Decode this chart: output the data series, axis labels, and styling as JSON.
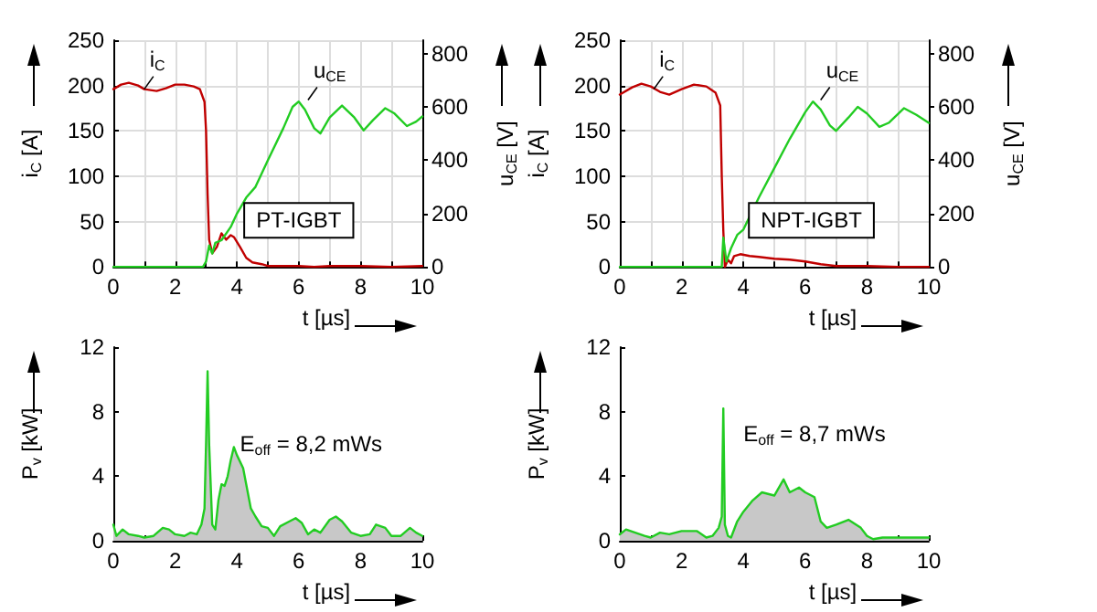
{
  "chart_data": [
    {
      "type": "line",
      "xlabel": "t [µs]",
      "ylabel": "i$_{C}$ [A]",
      "y2label": "u$_{CE}$ [V]",
      "xlim": [
        0,
        10
      ],
      "xticks": [
        0,
        {
          "value": 1,
          "label": null
        },
        2,
        {
          "value": 3,
          "label": null
        },
        4,
        {
          "value": 5,
          "label": null
        },
        6,
        {
          "value": 7,
          "label": null
        },
        8,
        {
          "value": 9,
          "label": null
        },
        10
      ],
      "ylim": [
        0,
        250
      ],
      "yticks": [
        0,
        50,
        100,
        150,
        200,
        250
      ],
      "y2lim": [
        0,
        850
      ],
      "y2ticks": [
        0,
        200,
        400,
        600,
        800
      ],
      "grid": true,
      "marker": "none",
      "annotations": [
        {
          "text": "i$_{C}$",
          "x": 1.0,
          "y": 196
        },
        {
          "text": "u$_{CE}$",
          "x": 6.3,
          "y": 184
        },
        "PT-IGBT"
      ],
      "series": [
        {
          "color": "#c00000",
          "x": [
            0,
            0.25,
            0.5,
            0.8,
            1.0,
            1.4,
            1.7,
            2.0,
            2.3,
            2.6,
            2.8,
            2.95,
            3.0,
            3.05,
            3.1,
            3.2,
            3.35,
            3.5,
            3.65,
            3.8,
            3.9,
            4.1,
            4.3,
            4.5,
            4.8,
            5.0,
            5.5,
            6.0,
            6.5,
            7,
            8,
            9,
            10
          ],
          "values": [
            196,
            201,
            203,
            200,
            196,
            194,
            197,
            201,
            201,
            199,
            196,
            182,
            150,
            80,
            30,
            15,
            22,
            37,
            30,
            35,
            33,
            22,
            10,
            5,
            3,
            1,
            1,
            1,
            0,
            1,
            1,
            0,
            1
          ]
        },
        {
          "color": "#22cc22",
          "axis": "y2",
          "x": [
            0,
            1,
            2,
            2.9,
            3.0,
            3.1,
            3.2,
            3.3,
            3.5,
            3.8,
            4.0,
            4.3,
            4.6,
            5.0,
            5.5,
            5.8,
            6.0,
            6.2,
            6.5,
            6.7,
            7.0,
            7.4,
            7.8,
            8.1,
            8.4,
            8.8,
            9.1,
            9.5,
            9.8,
            10
          ],
          "values": [
            0,
            0,
            0,
            0,
            20,
            80,
            50,
            90,
            100,
            150,
            200,
            260,
            300,
            400,
            520,
            600,
            620,
            590,
            520,
            500,
            560,
            605,
            560,
            512,
            550,
            595,
            575,
            528,
            545,
            564
          ]
        }
      ]
    },
    {
      "type": "line",
      "xlabel": "t [µs]",
      "ylabel": "i$_{C}$ [A]",
      "y2label": "u$_{CE}$ [V]",
      "xlim": [
        0,
        10
      ],
      "xticks": [
        0,
        {
          "value": 1,
          "label": null
        },
        2,
        {
          "value": 3,
          "label": null
        },
        4,
        {
          "value": 5,
          "label": null
        },
        6,
        {
          "value": 7,
          "label": null
        },
        8,
        {
          "value": 9,
          "label": null
        },
        10
      ],
      "ylim": [
        0,
        250
      ],
      "yticks": [
        0,
        50,
        100,
        150,
        200,
        250
      ],
      "y2lim": [
        0,
        850
      ],
      "y2ticks": [
        0,
        200,
        400,
        600,
        800
      ],
      "grid": true,
      "marker": "none",
      "annotations": [
        {
          "text": "i$_{C}$",
          "x": 1.1,
          "y": 196
        },
        {
          "text": "u$_{CE}$",
          "x": 6.5,
          "y": 184
        },
        "NPT-IGBT"
      ],
      "series": [
        {
          "color": "#c00000",
          "x": [
            0,
            0.4,
            0.7,
            1.0,
            1.3,
            1.6,
            2.0,
            2.4,
            2.8,
            3.1,
            3.25,
            3.3,
            3.35,
            3.4,
            3.5,
            3.6,
            3.7,
            3.9,
            4.2,
            4.5,
            5,
            5.5,
            6,
            6.5,
            7,
            8,
            9,
            10
          ],
          "values": [
            190,
            198,
            202,
            199,
            193,
            190,
            196,
            201,
            199,
            192,
            178,
            100,
            40,
            0,
            8,
            4,
            12,
            14,
            12,
            11,
            9,
            8,
            6,
            3,
            1,
            1,
            0,
            0
          ]
        },
        {
          "color": "#22cc22",
          "axis": "y2",
          "x": [
            0,
            1,
            2,
            3,
            3.3,
            3.35,
            3.45,
            3.6,
            3.8,
            4.0,
            4.5,
            5.0,
            5.5,
            6.0,
            6.25,
            6.5,
            6.8,
            7.0,
            7.4,
            7.7,
            8.0,
            8.4,
            8.7,
            9.2,
            9.6,
            10
          ],
          "values": [
            0,
            0,
            0,
            0,
            0,
            110,
            20,
            70,
            120,
            140,
            260,
            370,
            480,
            580,
            620,
            590,
            530,
            510,
            560,
            600,
            575,
            525,
            540,
            595,
            570,
            540
          ]
        }
      ]
    },
    {
      "type": "area",
      "xlabel": "t [µs]",
      "ylabel": "P$_{v}$ [kW]",
      "xlim": [
        0,
        10
      ],
      "xticks": [
        0,
        {
          "value": 1,
          "label": null
        },
        2,
        {
          "value": 3,
          "label": null
        },
        4,
        {
          "value": 5,
          "label": null
        },
        6,
        {
          "value": 7,
          "label": null
        },
        8,
        {
          "value": 9,
          "label": null
        },
        10
      ],
      "ylim": [
        0,
        12
      ],
      "yticks": [
        0,
        4,
        8,
        12
      ],
      "grid": false,
      "marker": "none",
      "annotations": [
        "E$_{off}$ = 8,2 mWs"
      ],
      "series": [
        {
          "color": "#22cc22",
          "x": [
            0,
            0.1,
            0.3,
            0.5,
            0.8,
            1.0,
            1.3,
            1.6,
            1.8,
            2.0,
            2.3,
            2.5,
            2.7,
            2.85,
            2.95,
            3.0,
            3.05,
            3.1,
            3.2,
            3.3,
            3.4,
            3.5,
            3.6,
            3.7,
            3.8,
            3.9,
            4.0,
            4.2,
            4.3,
            4.45,
            4.6,
            4.8,
            5.0,
            5.2,
            5.4,
            5.7,
            5.9,
            6.1,
            6.3,
            6.5,
            6.7,
            7.0,
            7.2,
            7.4,
            7.7,
            8.0,
            8.3,
            8.5,
            8.8,
            9.0,
            9.3,
            9.6,
            9.8,
            10
          ],
          "values": [
            1.0,
            0.3,
            0.7,
            0.4,
            0.3,
            0.2,
            0.3,
            0.8,
            0.7,
            0.4,
            0.3,
            0.5,
            0.4,
            1.0,
            2.0,
            6,
            10.5,
            6,
            1.0,
            0.7,
            2.5,
            3.5,
            3.4,
            4,
            5,
            5.8,
            5.3,
            4.5,
            3.5,
            2,
            1.5,
            0.9,
            0.8,
            0.3,
            0.9,
            1.2,
            1.4,
            1.1,
            0.4,
            0.7,
            0.5,
            1.3,
            1.5,
            1.2,
            0.5,
            0.3,
            0.4,
            1.0,
            0.8,
            0.3,
            0.3,
            0.8,
            0.5,
            0.3
          ]
        }
      ]
    },
    {
      "type": "area",
      "xlabel": "t [µs]",
      "ylabel": "P$_{v}$ [kW]",
      "xlim": [
        0,
        10
      ],
      "xticks": [
        0,
        {
          "value": 1,
          "label": null
        },
        2,
        {
          "value": 3,
          "label": null
        },
        4,
        {
          "value": 5,
          "label": null
        },
        6,
        {
          "value": 7,
          "label": null
        },
        8,
        {
          "value": 9,
          "label": null
        },
        10
      ],
      "ylim": [
        0,
        12
      ],
      "yticks": [
        0,
        4,
        8,
        12
      ],
      "grid": false,
      "marker": "none",
      "annotations": [
        "E$_{off}$ = 8,7 mWs"
      ],
      "series": [
        {
          "color": "#22cc22",
          "x": [
            0,
            0.2,
            0.5,
            0.8,
            1.0,
            1.3,
            1.6,
            2.0,
            2.5,
            2.8,
            3.0,
            3.2,
            3.3,
            3.35,
            3.4,
            3.5,
            3.6,
            3.8,
            4.0,
            4.3,
            4.6,
            5.0,
            5.3,
            5.5,
            5.8,
            6.0,
            6.3,
            6.5,
            6.7,
            7.0,
            7.4,
            7.8,
            8.0,
            8.2,
            8.5,
            9,
            9.5,
            10
          ],
          "values": [
            0.4,
            0.7,
            0.5,
            0.3,
            0.2,
            0.5,
            0.4,
            0.6,
            0.6,
            0.2,
            0.3,
            0.8,
            1.5,
            8.2,
            1.0,
            0.3,
            0.2,
            1.2,
            1.8,
            2.5,
            3.0,
            2.8,
            3.8,
            3.0,
            3.3,
            3.0,
            2.7,
            1.2,
            0.8,
            1.0,
            1.3,
            0.8,
            0.3,
            0.1,
            0.2,
            0.2,
            0.2,
            0.2
          ]
        }
      ]
    }
  ]
}
